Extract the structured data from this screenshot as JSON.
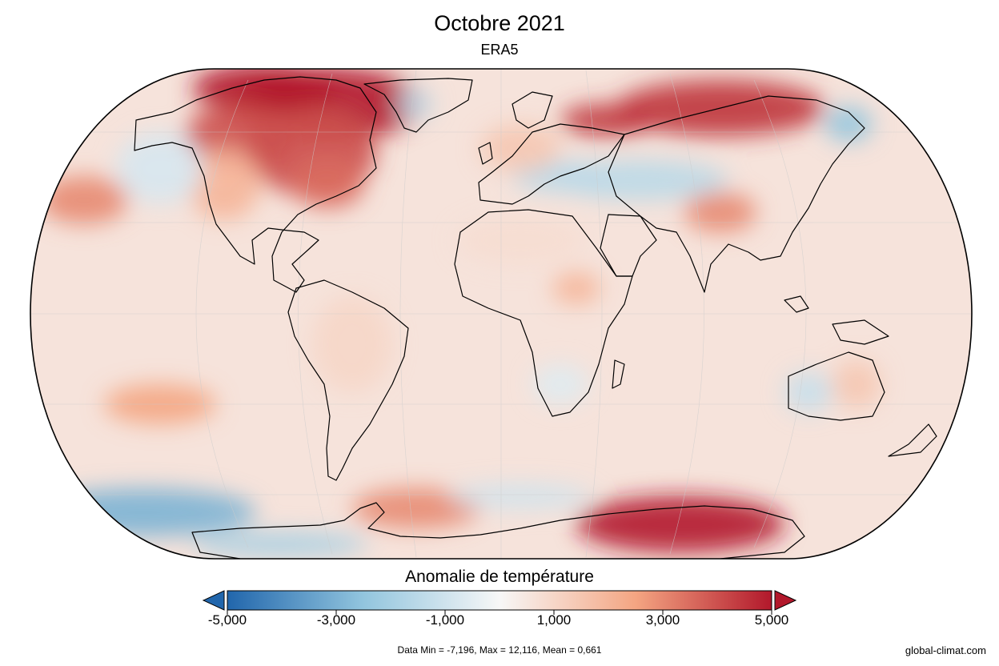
{
  "header": {
    "title": "Octobre 2021",
    "subtitle": "ERA5"
  },
  "colorbar": {
    "title": "Anomalie de température",
    "min": -5,
    "max": 5,
    "extend": "both",
    "ticks": [
      {
        "value": -5,
        "label": "-5,000"
      },
      {
        "value": -3,
        "label": "-3,000"
      },
      {
        "value": -1,
        "label": "-1,000"
      },
      {
        "value": 1,
        "label": "1,000"
      },
      {
        "value": 3,
        "label": "3,000"
      },
      {
        "value": 5,
        "label": "5,000"
      }
    ],
    "colors": {
      "low": "#2166ac",
      "mid_low": "#92c5de",
      "neutral": "#f7f7f7",
      "mid_high": "#f4a582",
      "high": "#b2182b"
    }
  },
  "footer": {
    "stats": "Data Min = -7,196, Max = 12,116, Mean = 0,661",
    "credit": "global-climat.com"
  },
  "map": {
    "projection": "Robinson",
    "variable": "temperature-anomaly",
    "background_anomaly": 0.6,
    "regions": [
      {
        "name": "arctic-canada-greenland",
        "anomaly": 5
      },
      {
        "name": "northern-north-america",
        "anomaly": 4
      },
      {
        "name": "eastern-usa",
        "anomaly": 3.5
      },
      {
        "name": "western-usa",
        "anomaly": 2
      },
      {
        "name": "alaska-west",
        "anomaly": -0.8
      },
      {
        "name": "greenland-interior",
        "anomaly": -1.5
      },
      {
        "name": "northern-siberia",
        "anomaly": 4.5
      },
      {
        "name": "northeast-siberia-coast",
        "anomaly": -2.5
      },
      {
        "name": "central-asia",
        "anomaly": -1.5
      },
      {
        "name": "tibet-china",
        "anomaly": 3
      },
      {
        "name": "europe",
        "anomaly": 1.5
      },
      {
        "name": "sahara",
        "anomaly": 0.8
      },
      {
        "name": "east-africa",
        "anomaly": 2
      },
      {
        "name": "south-africa",
        "anomaly": -0.6
      },
      {
        "name": "south-america",
        "anomaly": 1
      },
      {
        "name": "australia-west",
        "anomaly": -1.2
      },
      {
        "name": "australia-east",
        "anomaly": 1.5
      },
      {
        "name": "north-pacific-east",
        "anomaly": 3
      },
      {
        "name": "south-pacific-east",
        "anomaly": 2.5
      },
      {
        "name": "southern-ocean-pacific",
        "anomaly": -3
      },
      {
        "name": "antarctic-peninsula",
        "anomaly": 3
      },
      {
        "name": "east-antarctica",
        "anomaly": 5
      },
      {
        "name": "antarctic-coast-west",
        "anomaly": -2
      },
      {
        "name": "south-atlantic-band",
        "anomaly": -1
      }
    ]
  }
}
